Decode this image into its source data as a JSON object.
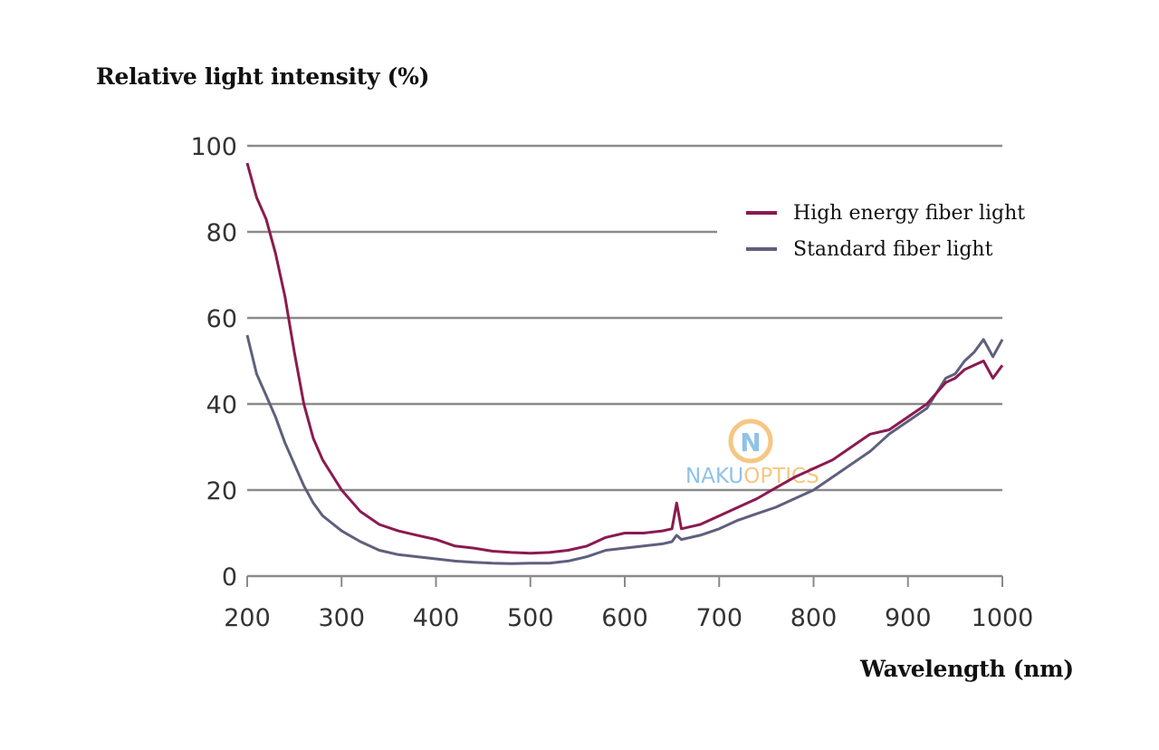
{
  "chart_data": {
    "type": "line",
    "title": "",
    "xlabel": "Wavelength (nm)",
    "ylabel": "Relative light intensity (%)",
    "xlim": [
      200,
      1000
    ],
    "ylim": [
      0,
      100
    ],
    "xticks": [
      200,
      300,
      400,
      500,
      600,
      700,
      800,
      900,
      1000
    ],
    "yticks": [
      0,
      20,
      40,
      60,
      80,
      100
    ],
    "grid": "horizontal",
    "legend_position": "top-right",
    "x": [
      200,
      210,
      220,
      230,
      240,
      250,
      260,
      270,
      280,
      300,
      320,
      340,
      360,
      380,
      400,
      420,
      440,
      460,
      480,
      500,
      520,
      540,
      560,
      580,
      600,
      620,
      640,
      650,
      655,
      660,
      680,
      700,
      720,
      740,
      760,
      780,
      800,
      820,
      840,
      860,
      880,
      900,
      920,
      940,
      950,
      960,
      970,
      980,
      990,
      1000
    ],
    "series": [
      {
        "name": "High energy fiber light",
        "color": "#8b1a50",
        "values": [
          96,
          88,
          83,
          75,
          65,
          52,
          40,
          32,
          27,
          20,
          15,
          12,
          10.5,
          9.5,
          8.5,
          7,
          6.5,
          5.8,
          5.5,
          5.3,
          5.5,
          6,
          7,
          9,
          10,
          10,
          10.5,
          11,
          17,
          11,
          12,
          14,
          16,
          18,
          20.5,
          23,
          25,
          27,
          30,
          33,
          34,
          37,
          40,
          45,
          46,
          48,
          49,
          50,
          46,
          49
        ]
      },
      {
        "name": "Standard fiber light",
        "color": "#5f5f7e",
        "values": [
          56,
          47,
          42,
          37,
          31,
          26,
          21,
          17,
          14,
          10.5,
          8,
          6,
          5,
          4.5,
          4,
          3.5,
          3.2,
          3,
          2.9,
          3,
          3,
          3.5,
          4.5,
          6,
          6.5,
          7,
          7.5,
          8,
          9.5,
          8.5,
          9.5,
          11,
          13,
          14.5,
          16,
          18,
          20,
          23,
          26,
          29,
          33,
          36,
          39,
          46,
          47,
          50,
          52,
          55,
          51,
          55
        ]
      }
    ]
  },
  "watermark": {
    "text": "NAKUOPTICS",
    "monogram": "N"
  }
}
